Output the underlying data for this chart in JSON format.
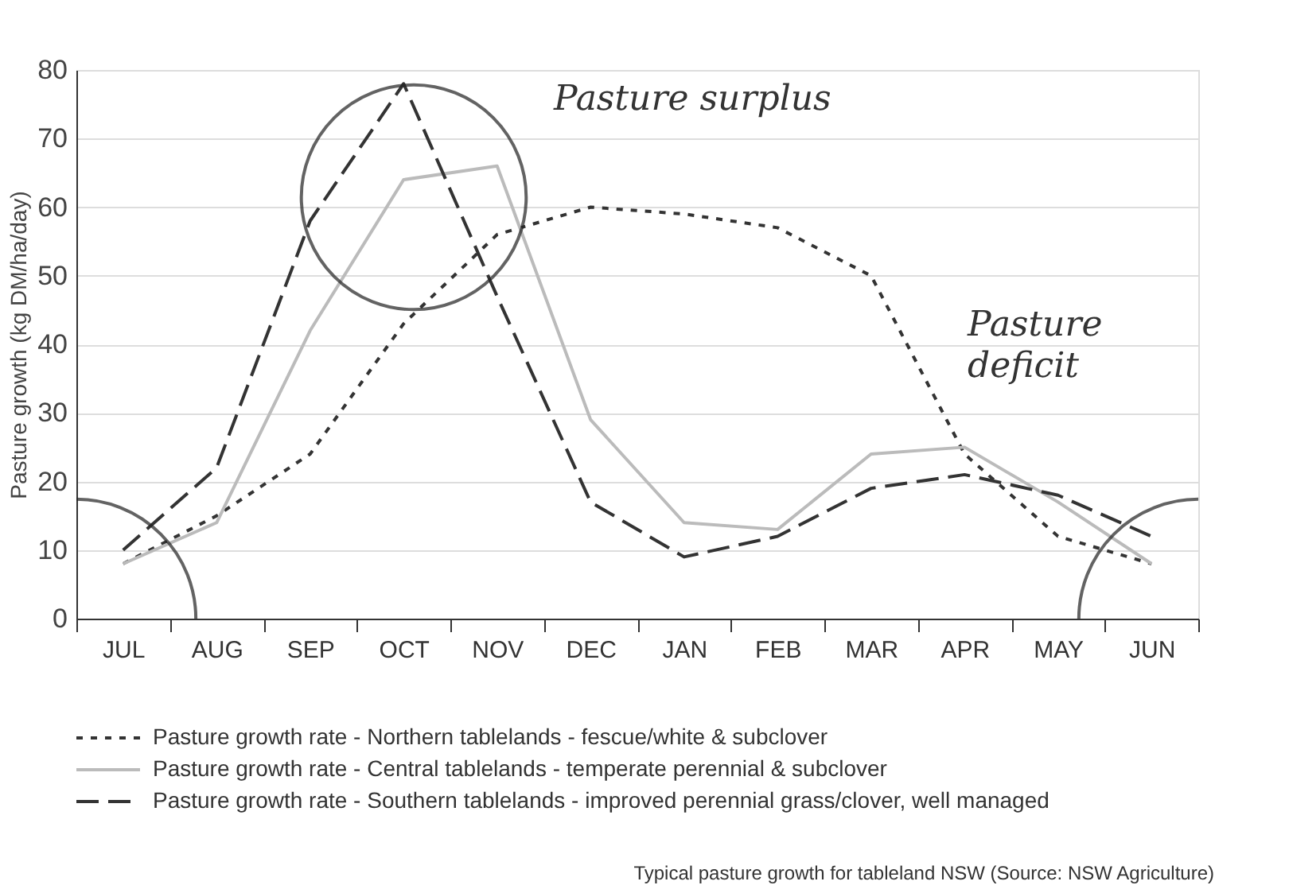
{
  "chart_data": {
    "type": "line",
    "categories": [
      "JUL",
      "AUG",
      "SEP",
      "OCT",
      "NOV",
      "DEC",
      "JAN",
      "FEB",
      "MAR",
      "APR",
      "MAY",
      "JUN"
    ],
    "ylabel": "Pasture growth (kg DM/ha/day)",
    "ylim": [
      0,
      80
    ],
    "yticks": [
      0,
      10,
      20,
      30,
      40,
      50,
      60,
      70,
      80
    ],
    "grid": "y",
    "legend": "bottom",
    "marker": "none",
    "series": [
      {
        "name": "Pasture growth rate - Northern tablelands - fescue/white & subclover",
        "color": "#333333",
        "line_style": "dotted",
        "values": [
          8,
          15,
          24,
          43,
          56,
          60,
          59,
          57,
          50,
          24,
          12,
          8
        ]
      },
      {
        "name": "Pasture growth rate - Central tablelands - temperate perennial & subclover",
        "color": "#bbbbbb",
        "line_style": "solid",
        "values": [
          8,
          14,
          42,
          64,
          66,
          29,
          14,
          13,
          24,
          25,
          17,
          8
        ]
      },
      {
        "name": "Pasture growth rate - Southern tablelands - improved perennial grass/clover, well managed",
        "color": "#333333",
        "line_style": "dashed",
        "values": [
          10,
          22,
          58,
          78,
          47,
          17,
          9,
          12,
          19,
          21,
          18,
          12
        ]
      }
    ],
    "annotations": [
      "Pasture surplus",
      "Pasture deficit",
      "Typical pasture growth for tableland NSW (Source: NSW Agriculture)"
    ]
  }
}
